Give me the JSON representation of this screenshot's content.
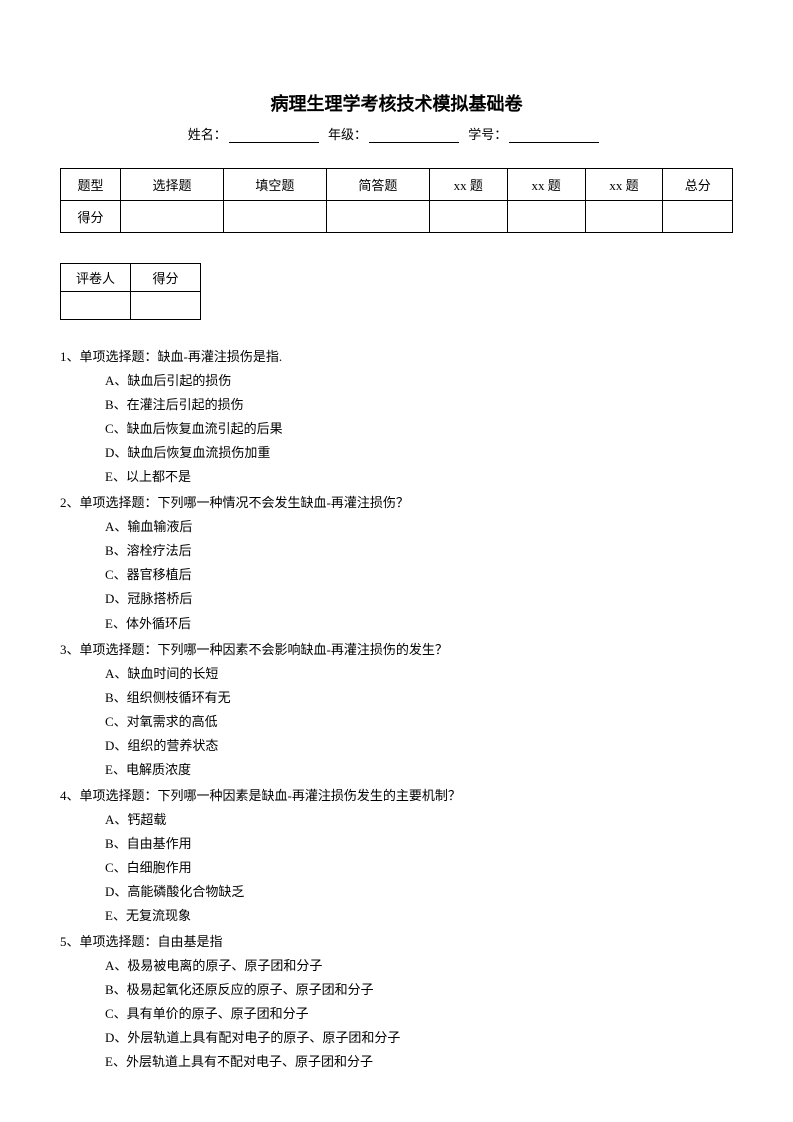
{
  "title": "病理生理学考核技术模拟基础卷",
  "header": {
    "name_label": "姓名：",
    "grade_label": "年级：",
    "id_label": "学号："
  },
  "score_table": {
    "row1": [
      "题型",
      "选择题",
      "填空题",
      "简答题",
      "xx 题",
      "xx 题",
      "xx 题",
      "总分"
    ],
    "row2_label": "得分"
  },
  "grader_table": {
    "col1": "评卷人",
    "col2": "得分"
  },
  "questions": [
    {
      "stem": "1、单项选择题：缺血-再灌注损伤是指.",
      "options": [
        "A、缺血后引起的损伤",
        "B、在灌注后引起的损伤",
        "C、缺血后恢复血流引起的后果",
        "D、缺血后恢复血流损伤加重",
        "E、以上都不是"
      ]
    },
    {
      "stem": "2、单项选择题：下列哪一种情况不会发生缺血-再灌注损伤？",
      "options": [
        "A、输血输液后",
        "B、溶栓疗法后",
        "C、器官移植后",
        "D、冠脉搭桥后",
        "E、体外循环后"
      ]
    },
    {
      "stem": "3、单项选择题：下列哪一种因素不会影响缺血-再灌注损伤的发生？",
      "options": [
        "A、缺血时间的长短",
        "B、组织侧枝循环有无",
        "C、对氧需求的高低",
        "D、组织的营养状态",
        "E、电解质浓度"
      ]
    },
    {
      "stem": "4、单项选择题：下列哪一种因素是缺血-再灌注损伤发生的主要机制？",
      "options": [
        "A、钙超载",
        "B、自由基作用",
        "C、白细胞作用",
        "D、高能磷酸化合物缺乏",
        "E、无复流现象"
      ]
    },
    {
      "stem": "5、单项选择题：自由基是指",
      "options": [
        "A、极易被电离的原子、原子团和分子",
        "B、极易起氧化还原反应的原子、原子团和分子",
        "C、具有单价的原子、原子团和分子",
        "D、外层轨道上具有配对电子的原子、原子团和分子",
        "E、外层轨道上具有不配对电子、原子团和分子"
      ]
    }
  ]
}
